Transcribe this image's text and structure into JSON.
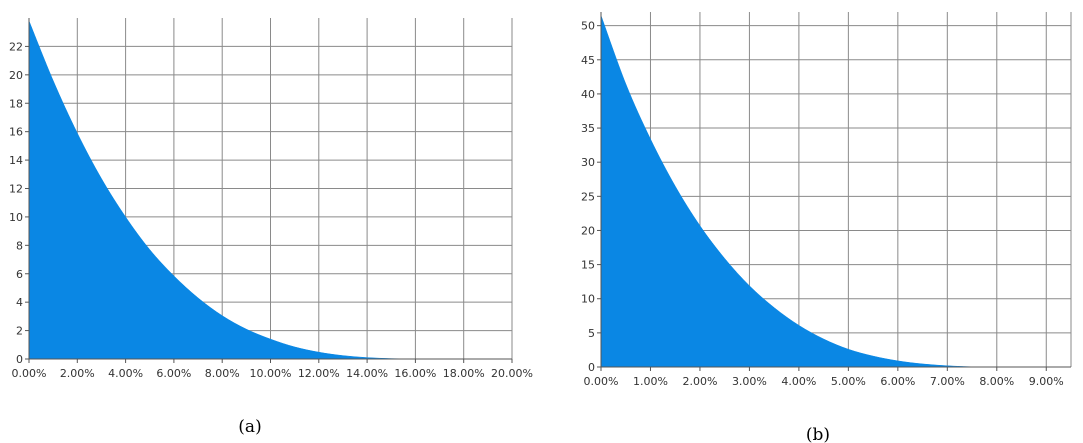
{
  "chart_data": [
    {
      "type": "area",
      "caption": "(a)",
      "color": "#0a87e4",
      "xlim": [
        0,
        0.2
      ],
      "ylim": [
        0,
        24
      ],
      "x_ticks": [
        0,
        0.02,
        0.04,
        0.06,
        0.08,
        0.1,
        0.12,
        0.14,
        0.16,
        0.18,
        0.2
      ],
      "x_tick_labels": [
        "0.00%",
        "2.00%",
        "4.00%",
        "6.00%",
        "8.00%",
        "10.00%",
        "12.00%",
        "14.00%",
        "16.00%",
        "18.00%",
        "20.00%"
      ],
      "y_ticks": [
        0,
        2,
        4,
        6,
        8,
        10,
        12,
        14,
        16,
        18,
        20,
        22
      ],
      "y_tick_labels": [
        "0",
        "2",
        "4",
        "6",
        "8",
        "10",
        "12",
        "14",
        "16",
        "18",
        "20",
        "22"
      ],
      "grid": true,
      "x": [
        0,
        0.01,
        0.02,
        0.03,
        0.04,
        0.05,
        0.06,
        0.07,
        0.08,
        0.09,
        0.1,
        0.11,
        0.12,
        0.13,
        0.14,
        0.15,
        0.16
      ],
      "y": [
        23.8,
        19.6,
        15.9,
        12.7,
        10.0,
        7.7,
        5.85,
        4.3,
        3.05,
        2.1,
        1.4,
        0.85,
        0.48,
        0.24,
        0.1,
        0.03,
        0.0
      ]
    },
    {
      "type": "area",
      "caption": "(b)",
      "color": "#0a87e4",
      "xlim": [
        0,
        0.095
      ],
      "ylim": [
        0,
        52
      ],
      "x_ticks": [
        0,
        0.01,
        0.02,
        0.03,
        0.04,
        0.05,
        0.06,
        0.07,
        0.08,
        0.09
      ],
      "x_tick_labels": [
        "0.00%",
        "1.00%",
        "2.00%",
        "3.00%",
        "4.00%",
        "5.00%",
        "6.00%",
        "7.00%",
        "8.00%",
        "9.00%"
      ],
      "y_ticks": [
        0,
        5,
        10,
        15,
        20,
        25,
        30,
        35,
        40,
        45,
        50
      ],
      "y_tick_labels": [
        "0",
        "5",
        "10",
        "15",
        "20",
        "25",
        "30",
        "35",
        "40",
        "45",
        "50"
      ],
      "grid": true,
      "x": [
        0,
        0.005,
        0.01,
        0.015,
        0.02,
        0.025,
        0.03,
        0.035,
        0.04,
        0.045,
        0.05,
        0.055,
        0.06,
        0.065,
        0.07,
        0.075,
        0.077
      ],
      "y": [
        51.5,
        41.5,
        33.4,
        26.5,
        20.7,
        15.9,
        11.9,
        8.7,
        6.1,
        4.1,
        2.6,
        1.6,
        0.9,
        0.45,
        0.18,
        0.03,
        0.0
      ]
    }
  ]
}
